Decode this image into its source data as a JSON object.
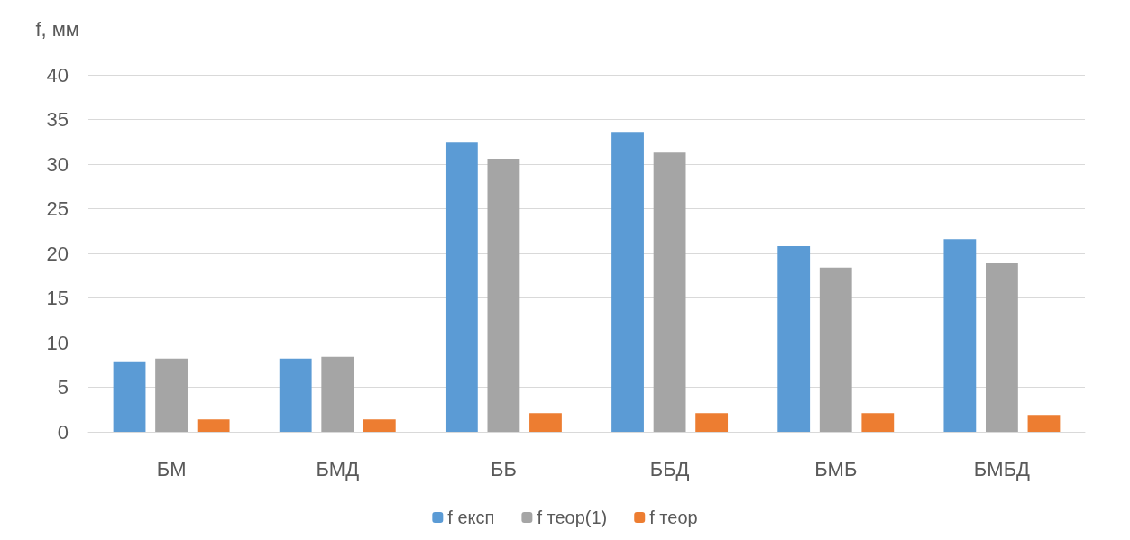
{
  "chart_data": {
    "type": "bar",
    "ylabel": "f, мм",
    "categories": [
      "БМ",
      "БМД",
      "ББ",
      "ББД",
      "БМБ",
      "БМБД"
    ],
    "series": [
      {
        "name": "f експ",
        "color": "#5b9bd5",
        "values": [
          7.9,
          8.2,
          32.4,
          33.6,
          20.8,
          21.6
        ]
      },
      {
        "name": "f теор(1)",
        "color": "#a5a5a5",
        "values": [
          8.2,
          8.4,
          30.6,
          31.3,
          18.4,
          18.9
        ]
      },
      {
        "name": "f теор",
        "color": "#ed7d31",
        "values": [
          1.4,
          1.4,
          2.1,
          2.1,
          2.1,
          1.9
        ]
      }
    ],
    "ylim": [
      0,
      40
    ],
    "yticks": [
      0,
      5,
      10,
      15,
      20,
      25,
      30,
      35,
      40
    ],
    "grid": "y",
    "legend": "bottom"
  }
}
